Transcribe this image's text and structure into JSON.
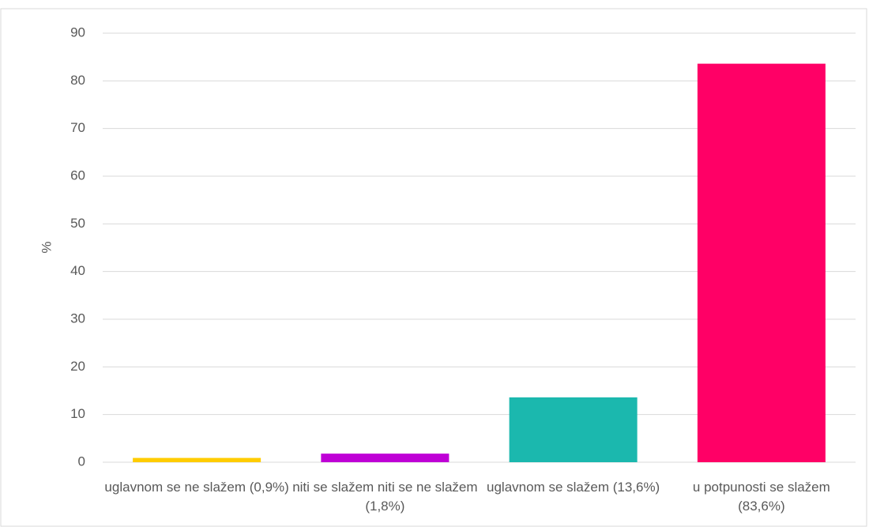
{
  "chart_data": {
    "type": "bar",
    "y_label": "%",
    "categories": [
      "uglavnom se ne slažem (0,9%)",
      "niti se slažem niti se ne slažem (1,8%)",
      "uglavnom se slažem (13,6%)",
      "u potpunosti se slažem (83,6%)"
    ],
    "values": [
      0.9,
      1.8,
      13.6,
      83.6
    ],
    "colors": [
      "#ffcc00",
      "#bf00d6",
      "#1bb8ae",
      "#ff0066"
    ],
    "ylim": [
      0,
      90
    ],
    "yticks": [
      0,
      10,
      20,
      30,
      40,
      50,
      60,
      70,
      80,
      90
    ],
    "grid": true
  }
}
